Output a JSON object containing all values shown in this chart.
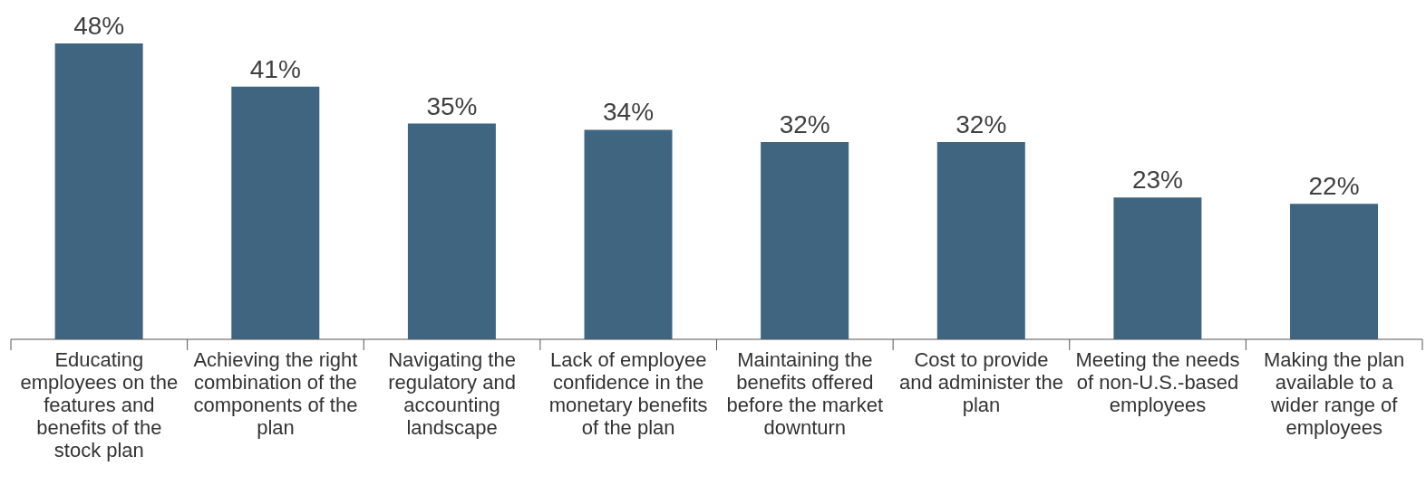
{
  "chart_data": {
    "type": "bar",
    "categories": [
      "Educating employees on the features and benefits of the stock plan",
      "Achieving the right combination of the components of the plan",
      "Navigating the regulatory and accounting landscape",
      "Lack of employee confidence in the monetary benefits of the plan",
      "Maintaining the benefits offered before the market downturn",
      "Cost to provide and administer the plan",
      "Meeting the needs of non-U.S.-based employees",
      "Making the plan available to a wider range of employees"
    ],
    "values": [
      48,
      41,
      35,
      34,
      32,
      32,
      23,
      22
    ],
    "value_labels": [
      "48%",
      "41%",
      "35%",
      "34%",
      "32%",
      "32%",
      "23%",
      "22%"
    ],
    "color": "#3f6580",
    "grid": false,
    "legend": false
  }
}
